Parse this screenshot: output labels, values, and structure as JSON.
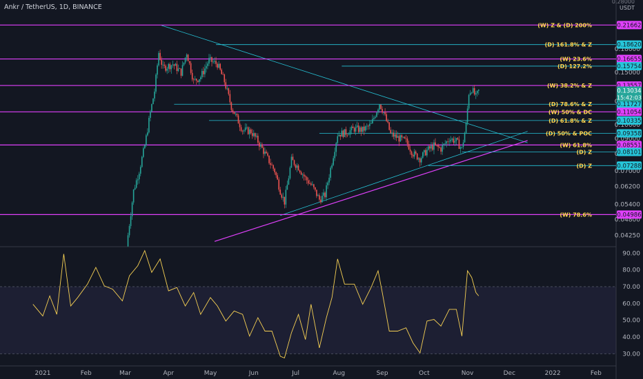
{
  "header": {
    "title": "Ankr / TetherUS, 1D, BINANCE"
  },
  "axis": {
    "currency_label": "USDT",
    "top_tick": "0.28000"
  },
  "chart_data": [
    {
      "type": "candlestick",
      "title": "Ankr / TetherUS, 1D, BINANCE",
      "ylabel": "USDT",
      "ylim": [
        0.0395,
        0.263
      ],
      "log_scale": true,
      "price_ticks": [
        "0.18000",
        "0.15000",
        "0.12000",
        "0.10000",
        "0.09000",
        "0.08000",
        "0.07000",
        "0.06200",
        "0.05400",
        "0.04800",
        "0.04250"
      ],
      "time_labels": [
        "2021",
        "Feb",
        "Mar",
        "Apr",
        "May",
        "Jun",
        "Jul",
        "Aug",
        "Sep",
        "Oct",
        "Nov",
        "Dec",
        "2022",
        "Feb"
      ],
      "close_path": [
        [
          "2021-03-02",
          0.039
        ],
        [
          "2021-03-07",
          0.06
        ],
        [
          "2021-03-11",
          0.07
        ],
        [
          "2021-03-15",
          0.085
        ],
        [
          "2021-03-19",
          0.11
        ],
        [
          "2021-03-22",
          0.13
        ],
        [
          "2021-03-25",
          0.175
        ],
        [
          "2021-03-28",
          0.155
        ],
        [
          "2021-04-04",
          0.16
        ],
        [
          "2021-04-10",
          0.15
        ],
        [
          "2021-04-14",
          0.175
        ],
        [
          "2021-04-19",
          0.14
        ],
        [
          "2021-04-24",
          0.145
        ],
        [
          "2021-04-30",
          0.165
        ],
        [
          "2021-05-06",
          0.16
        ],
        [
          "2021-05-11",
          0.14
        ],
        [
          "2021-05-16",
          0.115
        ],
        [
          "2021-05-20",
          0.105
        ],
        [
          "2021-05-24",
          0.096
        ],
        [
          "2021-05-30",
          0.095
        ],
        [
          "2021-06-04",
          0.088
        ],
        [
          "2021-06-09",
          0.08
        ],
        [
          "2021-06-13",
          0.074
        ],
        [
          "2021-06-16",
          0.07
        ],
        [
          "2021-06-20",
          0.06
        ],
        [
          "2021-06-23",
          0.055
        ],
        [
          "2021-06-28",
          0.076
        ],
        [
          "2021-07-03",
          0.072
        ],
        [
          "2021-07-08",
          0.066
        ],
        [
          "2021-07-13",
          0.062
        ],
        [
          "2021-07-18",
          0.056
        ],
        [
          "2021-07-22",
          0.058
        ],
        [
          "2021-07-27",
          0.075
        ],
        [
          "2021-07-31",
          0.093
        ],
        [
          "2021-08-06",
          0.094
        ],
        [
          "2021-08-12",
          0.097
        ],
        [
          "2021-08-18",
          0.096
        ],
        [
          "2021-08-24",
          0.1
        ],
        [
          "2021-08-30",
          0.118
        ],
        [
          "2021-09-02",
          0.11
        ],
        [
          "2021-09-07",
          0.093
        ],
        [
          "2021-09-13",
          0.09
        ],
        [
          "2021-09-18",
          0.088
        ],
        [
          "2021-09-23",
          0.08
        ],
        [
          "2021-09-28",
          0.077
        ],
        [
          "2021-10-03",
          0.082
        ],
        [
          "2021-10-08",
          0.085
        ],
        [
          "2021-10-13",
          0.083
        ],
        [
          "2021-10-19",
          0.09
        ],
        [
          "2021-10-24",
          0.088
        ],
        [
          "2021-10-28",
          0.083
        ],
        [
          "2021-10-31",
          0.1
        ],
        [
          "2021-11-02",
          0.128
        ],
        [
          "2021-11-04",
          0.132
        ],
        [
          "2021-11-07",
          0.124
        ],
        [
          "2021-11-09",
          0.13
        ]
      ],
      "horizontal_levels": [
        {
          "label": "(W) Z & (D) 200%",
          "value": 0.21662,
          "color": "#e040fb",
          "kind": "weekly"
        },
        {
          "label": "(D) 161.8% & Z",
          "value": 0.1862,
          "color": "#26c6da",
          "kind": "daily"
        },
        {
          "label": "(W) 23.6%",
          "value": 0.16655,
          "color": "#e040fb",
          "kind": "weekly"
        },
        {
          "label": "(D) 127.2%",
          "value": 0.15754,
          "color": "#26c6da",
          "kind": "daily"
        },
        {
          "label": "(W) 38.2% & Z",
          "value": 0.13557,
          "color": "#e040fb",
          "kind": "weekly"
        },
        {
          "label": "(D) 78.6% & Z",
          "value": 0.11727,
          "color": "#26c6da",
          "kind": "daily"
        },
        {
          "label": "(W) 50% & DC",
          "value": 0.11054,
          "color": "#e040fb",
          "kind": "weekly"
        },
        {
          "label": "(D) 61.8% & Z",
          "value": 0.10335,
          "color": "#26c6da",
          "kind": "daily"
        },
        {
          "label": "(D) 50% & POC",
          "value": 0.09358,
          "color": "#26c6da",
          "kind": "daily"
        },
        {
          "label": "(W) 61.8%",
          "value": 0.08551,
          "color": "#e040fb",
          "kind": "weekly"
        },
        {
          "label": "(D) Z",
          "value": 0.08101,
          "color": "#26c6da",
          "kind": "daily"
        },
        {
          "label": "(D) Z",
          "value": 0.07288,
          "color": "#26c6da",
          "kind": "daily"
        },
        {
          "label": "(W) 78.6%",
          "value": 0.04986,
          "color": "#e040fb",
          "kind": "weekly"
        }
      ],
      "current_price": {
        "value": "0.13034",
        "countdown": "15:42:03",
        "color": "#26a69a"
      }
    },
    {
      "type": "line",
      "title": "",
      "ylim": [
        24,
        93
      ],
      "y_ticks": [
        "90.00",
        "80.00",
        "70.00",
        "60.00",
        "50.00",
        "40.00",
        "30.00"
      ],
      "band": [
        30,
        70
      ],
      "series": [
        {
          "values": [
            [
              "2020-12-25",
              58
            ],
            [
              "2021-01-01",
              54
            ],
            [
              "2021-01-06",
              63
            ],
            [
              "2021-01-11",
              55
            ],
            [
              "2021-01-16",
              88
            ],
            [
              "2021-01-21",
              60
            ],
            [
              "2021-01-26",
              62
            ],
            [
              "2021-02-02",
              73
            ],
            [
              "2021-02-08",
              80
            ],
            [
              "2021-02-14",
              72
            ],
            [
              "2021-02-20",
              67
            ],
            [
              "2021-02-27",
              63
            ],
            [
              "2021-03-04",
              75
            ],
            [
              "2021-03-10",
              84
            ],
            [
              "2021-03-15",
              90
            ],
            [
              "2021-03-20",
              80
            ],
            [
              "2021-03-26",
              85
            ],
            [
              "2021-04-01",
              69
            ],
            [
              "2021-04-07",
              68
            ],
            [
              "2021-04-13",
              60
            ],
            [
              "2021-04-19",
              65
            ],
            [
              "2021-04-24",
              55
            ],
            [
              "2021-05-01",
              62
            ],
            [
              "2021-05-06",
              60
            ],
            [
              "2021-05-12",
              48
            ],
            [
              "2021-05-18",
              57
            ],
            [
              "2021-05-24",
              52
            ],
            [
              "2021-05-29",
              42
            ],
            [
              "2021-06-04",
              50
            ],
            [
              "2021-06-09",
              45
            ],
            [
              "2021-06-14",
              42
            ],
            [
              "2021-06-20",
              30
            ],
            [
              "2021-06-23",
              26
            ],
            [
              "2021-06-28",
              44
            ],
            [
              "2021-07-03",
              52
            ],
            [
              "2021-07-08",
              40
            ],
            [
              "2021-07-12",
              58
            ],
            [
              "2021-07-18",
              35
            ],
            [
              "2021-07-23",
              50
            ],
            [
              "2021-07-27",
              65
            ],
            [
              "2021-07-31",
              85
            ],
            [
              "2021-08-05",
              73
            ],
            [
              "2021-08-12",
              70
            ],
            [
              "2021-08-18",
              61
            ],
            [
              "2021-08-24",
              68
            ],
            [
              "2021-08-29",
              81
            ],
            [
              "2021-09-01",
              65
            ],
            [
              "2021-09-06",
              45
            ],
            [
              "2021-09-12",
              42
            ],
            [
              "2021-09-18",
              47
            ],
            [
              "2021-09-23",
              35
            ],
            [
              "2021-09-28",
              32
            ],
            [
              "2021-10-03",
              48
            ],
            [
              "2021-10-08",
              52
            ],
            [
              "2021-10-13",
              45
            ],
            [
              "2021-10-19",
              58
            ],
            [
              "2021-10-24",
              55
            ],
            [
              "2021-10-28",
              42
            ],
            [
              "2021-11-01",
              78
            ],
            [
              "2021-11-04",
              77
            ],
            [
              "2021-11-07",
              65
            ],
            [
              "2021-11-09",
              66
            ]
          ]
        }
      ]
    }
  ]
}
